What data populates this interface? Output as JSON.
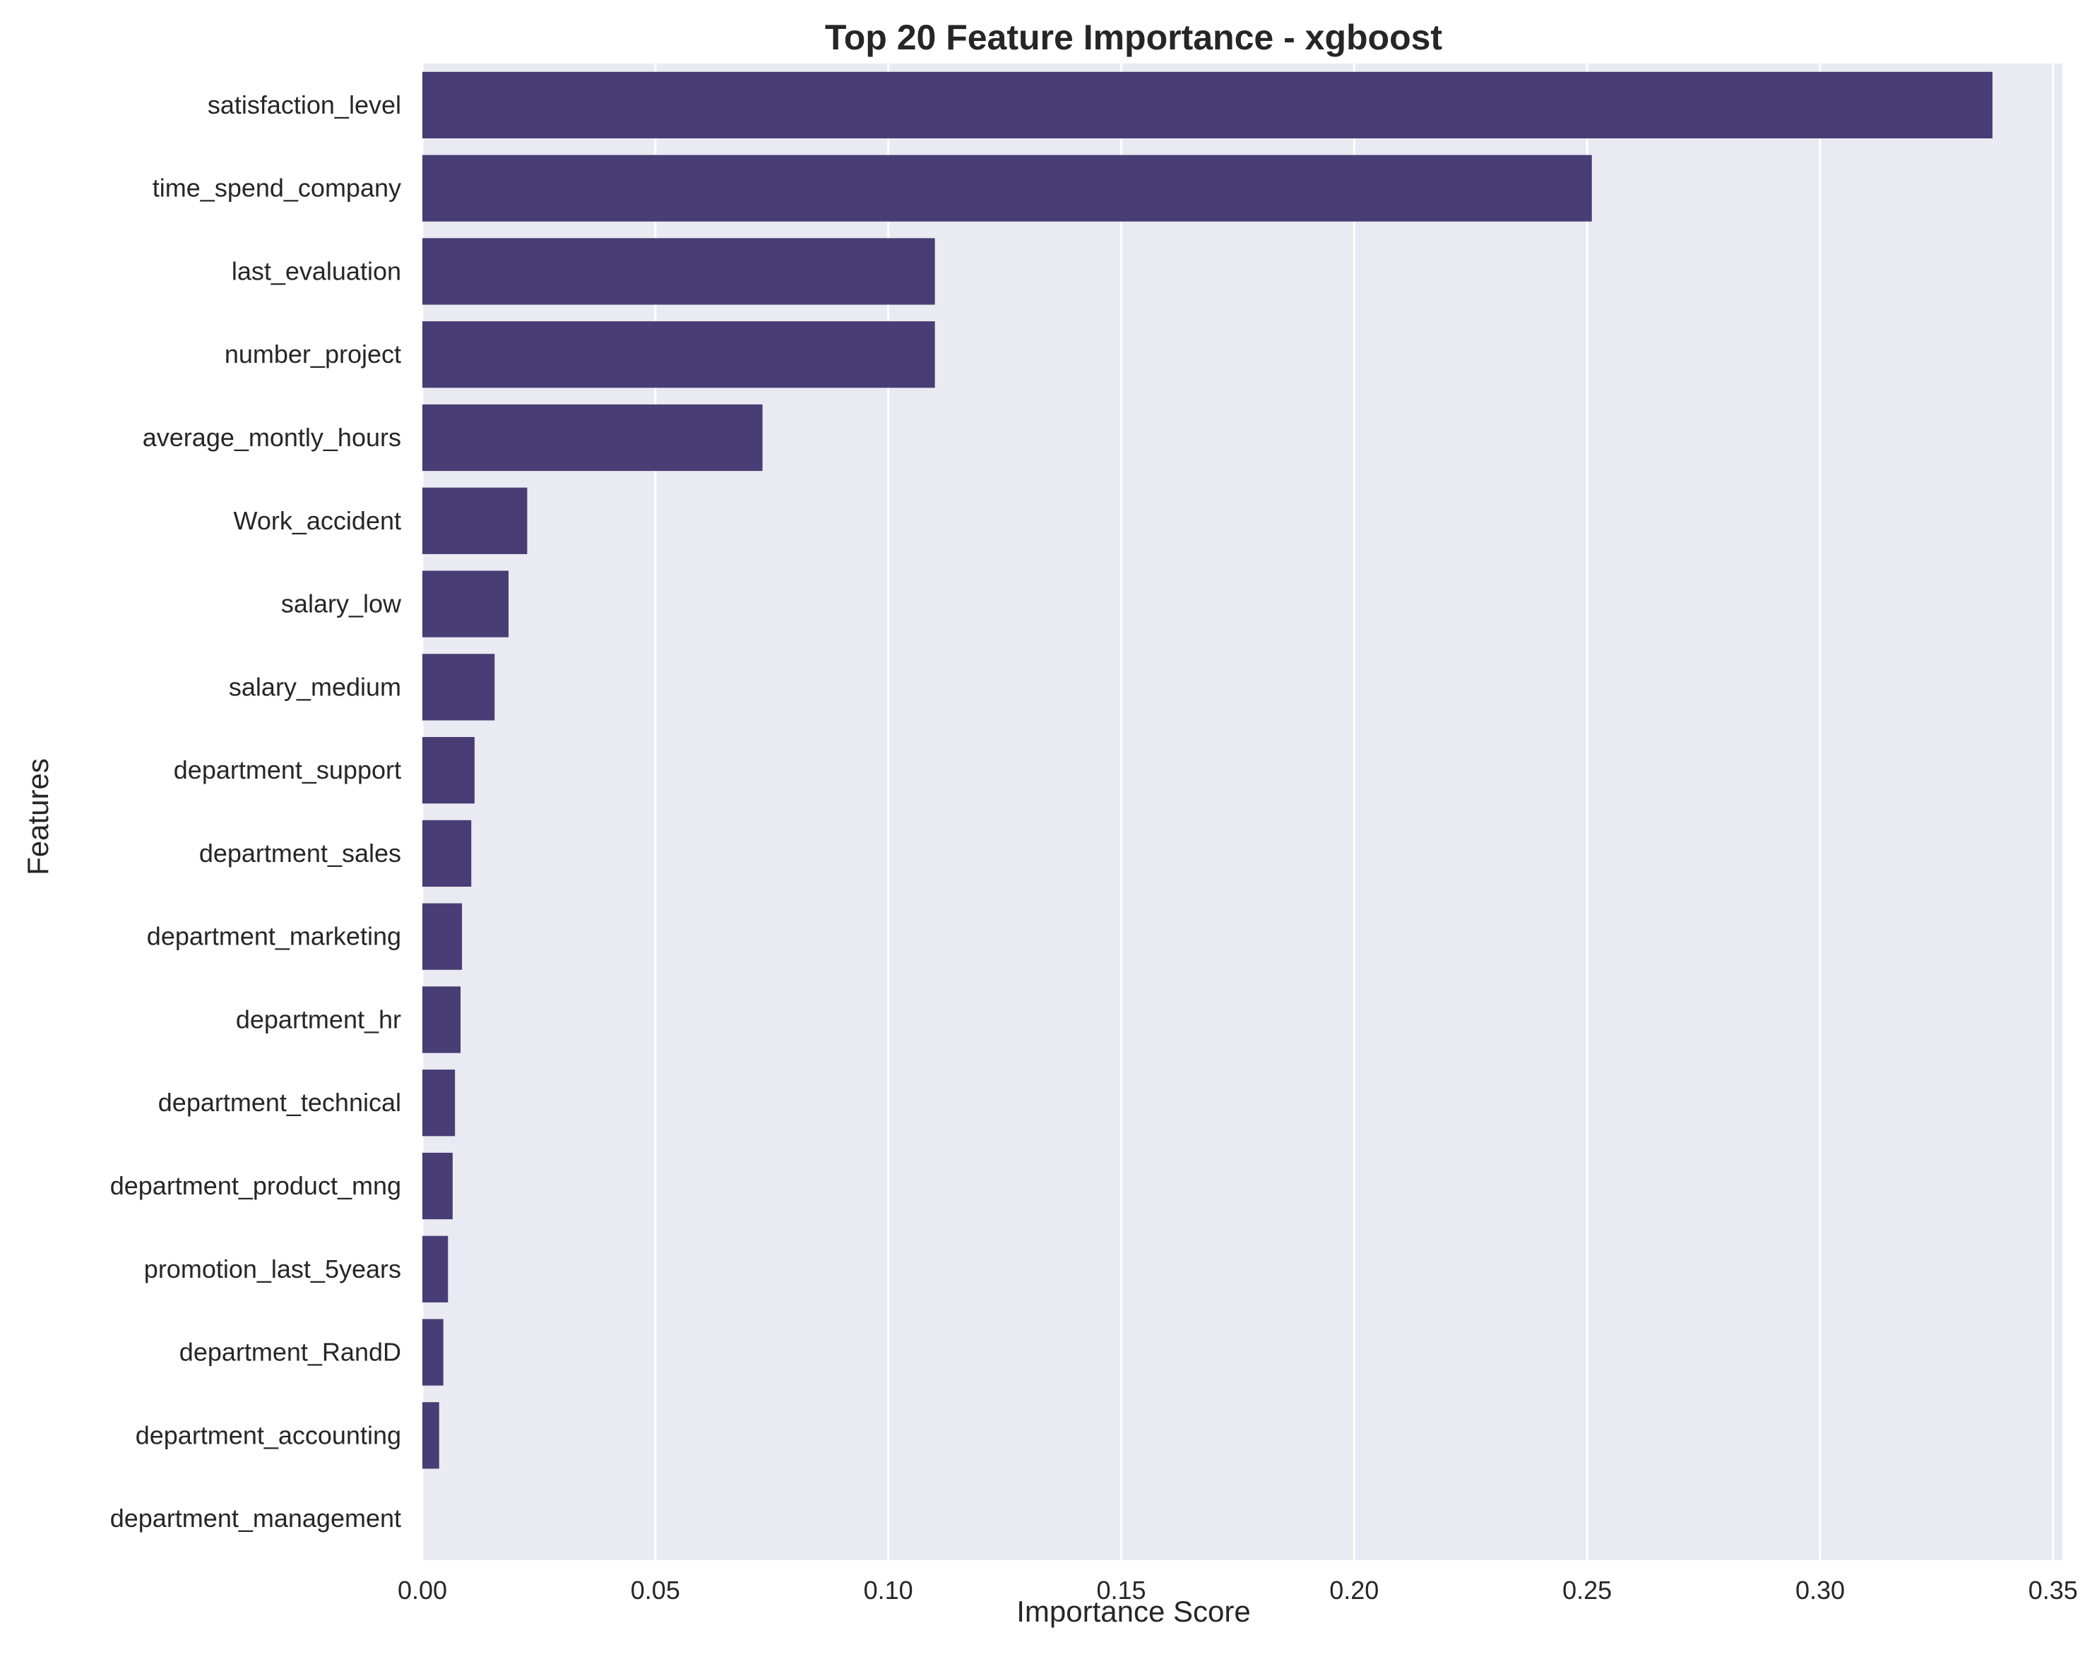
{
  "chart_data": {
    "type": "bar",
    "orientation": "horizontal",
    "title": "Top 20 Feature Importance - xgboost",
    "xlabel": "Importance Score",
    "ylabel": "Features",
    "xlim": [
      0,
      0.352
    ],
    "xticks": [
      "0.00",
      "0.05",
      "0.10",
      "0.15",
      "0.20",
      "0.25",
      "0.30",
      "0.35"
    ],
    "grid": true,
    "bar_color": "#483D74",
    "background_color": "#EAEAF2",
    "categories": [
      "satisfaction_level",
      "time_spend_company",
      "last_evaluation",
      "number_project",
      "average_montly_hours",
      "Work_accident",
      "salary_low",
      "salary_medium",
      "department_support",
      "department_sales",
      "department_marketing",
      "department_hr",
      "department_technical",
      "department_product_mng",
      "promotion_last_5years",
      "department_RandD",
      "department_accounting",
      "department_management"
    ],
    "values": [
      0.337,
      0.251,
      0.11,
      0.11,
      0.073,
      0.0225,
      0.0185,
      0.0155,
      0.0112,
      0.0105,
      0.0085,
      0.0082,
      0.007,
      0.0065,
      0.0055,
      0.0045,
      0.0036,
      0.0
    ]
  }
}
